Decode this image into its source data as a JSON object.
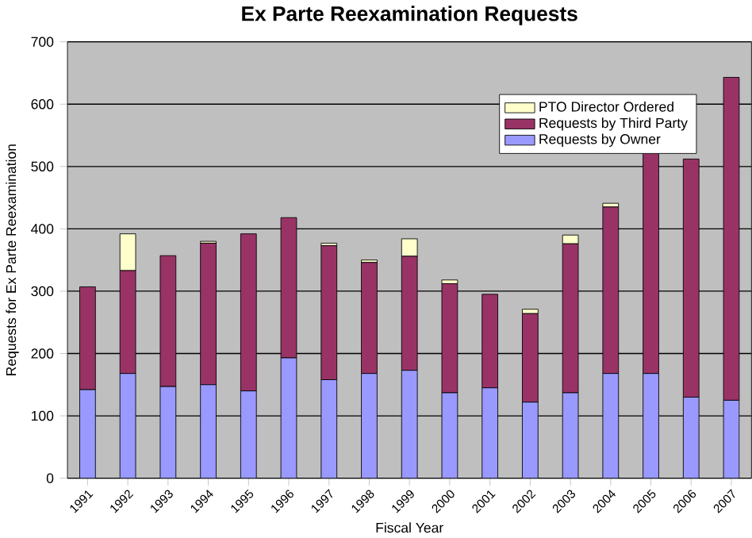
{
  "chart_data": {
    "type": "bar",
    "title": "Ex Parte Reexamination Requests",
    "xlabel": "Fiscal Year",
    "ylabel": "Requests for Ex Parte Reexamination",
    "categories": [
      "1991",
      "1992",
      "1993",
      "1994",
      "1995",
      "1996",
      "1997",
      "1998",
      "1999",
      "2000",
      "2001",
      "2002",
      "2003",
      "2004",
      "2005",
      "2006",
      "2007"
    ],
    "stacked": true,
    "ylim": [
      0,
      700
    ],
    "yticks": [
      0,
      100,
      200,
      300,
      400,
      500,
      600,
      700
    ],
    "grid": "y",
    "legend": "top right",
    "series": [
      {
        "name": "Requests by Owner",
        "color": "#9999ff",
        "values": [
          142,
          168,
          147,
          150,
          140,
          193,
          158,
          168,
          173,
          137,
          145,
          122,
          137,
          168,
          168,
          130,
          125
        ]
      },
      {
        "name": "Requests by Third Party",
        "color": "#993366",
        "values": [
          165,
          165,
          210,
          227,
          252,
          225,
          215,
          178,
          183,
          175,
          150,
          142,
          239,
          267,
          357,
          382,
          518
        ]
      },
      {
        "name": "PTO Director Ordered",
        "color": "#ffffcc",
        "values": [
          0,
          59,
          0,
          3,
          0,
          0,
          4,
          4,
          28,
          6,
          0,
          7,
          14,
          6,
          0,
          0,
          0
        ]
      }
    ]
  }
}
